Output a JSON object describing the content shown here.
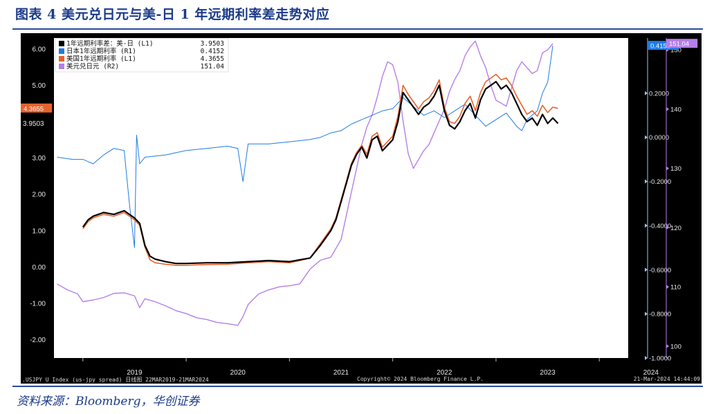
{
  "title": "图表 4   美元兑日元与美-日 1 年远期利率差走势对应",
  "source": "资料来源：Bloomberg，华创证券",
  "footer": {
    "left": ".USJPY U Index (us-jpy spread) 日线图 22MAR2019-21MAR2024",
    "center": "Copyright© 2024 Bloomberg Finance L.P.",
    "right": "21-Mar-2024 14:44:09"
  },
  "colors": {
    "spread": "#000000",
    "japan": "#1e7be6",
    "us": "#e8622c",
    "usdjpy": "#b57ee8",
    "frame": "#000000",
    "title": "#1a3a8a"
  },
  "chart_data": {
    "type": "line",
    "x_ticks": [
      "2019",
      "2020",
      "2021",
      "2022",
      "2023",
      "2024"
    ],
    "axes": {
      "left": {
        "ticks": [
          "6.00",
          "5.00",
          "3.00",
          "2.00",
          "1.00",
          "0.00",
          "-1.00",
          "-2.00"
        ],
        "ylim": [
          -2.5,
          6.3
        ]
      },
      "right1": {
        "ticks": [
          "0.2000",
          "0.0000",
          "-0.2000",
          "-0.4000",
          "-0.6000",
          "-0.8000",
          "-1.0000"
        ],
        "ylim": [
          -1.0,
          0.45
        ]
      },
      "right2": {
        "ticks": [
          "150",
          "140",
          "130",
          "120",
          "110",
          "100"
        ],
        "ylim": [
          98,
          152
        ]
      }
    },
    "last_value_tags": {
      "us_1y": "4.3655",
      "spread": "3.9503",
      "japan_1y": "0.4152",
      "usdjpy": "151.04"
    },
    "legend": [
      {
        "label": "1年远期利率差：美-日 (L1)",
        "value": "3.9503",
        "color": "#000000"
      },
      {
        "label": "日本1年远期利率 (R1)",
        "value": "0.4152",
        "color": "#1e7be6"
      },
      {
        "label": "美国1年远期利率 (L1)",
        "value": "4.3655",
        "color": "#e8622c"
      },
      {
        "label": "美元兑日元 (R2)",
        "value": "151.04",
        "color": "#b57ee8"
      }
    ],
    "series": [
      {
        "name": "1年远期利率差：美-日 (L1)",
        "axis": "left",
        "points": [
          [
            2019.0,
            1.1
          ],
          [
            2019.05,
            1.3
          ],
          [
            2019.1,
            1.4
          ],
          [
            2019.15,
            1.45
          ],
          [
            2019.2,
            1.5
          ],
          [
            2019.3,
            1.45
          ],
          [
            2019.4,
            1.55
          ],
          [
            2019.5,
            1.35
          ],
          [
            2019.55,
            1.2
          ],
          [
            2019.6,
            0.6
          ],
          [
            2019.65,
            0.3
          ],
          [
            2019.7,
            0.22
          ],
          [
            2019.8,
            0.15
          ],
          [
            2019.9,
            0.1
          ],
          [
            2020.0,
            0.1
          ],
          [
            2020.2,
            0.12
          ],
          [
            2020.4,
            0.12
          ],
          [
            2020.6,
            0.15
          ],
          [
            2020.8,
            0.18
          ],
          [
            2021.0,
            0.15
          ],
          [
            2021.1,
            0.2
          ],
          [
            2021.2,
            0.25
          ],
          [
            2021.3,
            0.6
          ],
          [
            2021.4,
            1.0
          ],
          [
            2021.45,
            1.3
          ],
          [
            2021.5,
            1.8
          ],
          [
            2021.55,
            2.3
          ],
          [
            2021.6,
            2.8
          ],
          [
            2021.65,
            3.1
          ],
          [
            2021.7,
            3.3
          ],
          [
            2021.75,
            3.0
          ],
          [
            2021.8,
            3.5
          ],
          [
            2021.85,
            3.6
          ],
          [
            2021.9,
            3.2
          ],
          [
            2022.0,
            3.5
          ],
          [
            2022.05,
            4.0
          ],
          [
            2022.1,
            4.8
          ],
          [
            2022.15,
            4.6
          ],
          [
            2022.2,
            4.4
          ],
          [
            2022.25,
            4.2
          ],
          [
            2022.3,
            4.4
          ],
          [
            2022.35,
            4.5
          ],
          [
            2022.4,
            4.7
          ],
          [
            2022.45,
            5.0
          ],
          [
            2022.5,
            4.3
          ],
          [
            2022.55,
            3.9
          ],
          [
            2022.6,
            3.8
          ],
          [
            2022.65,
            4.0
          ],
          [
            2022.7,
            4.3
          ],
          [
            2022.75,
            4.5
          ],
          [
            2022.8,
            4.1
          ],
          [
            2022.85,
            4.6
          ],
          [
            2022.9,
            4.9
          ],
          [
            2022.95,
            5.0
          ],
          [
            2023.0,
            5.1
          ],
          [
            2023.05,
            4.9
          ],
          [
            2023.1,
            5.0
          ],
          [
            2023.15,
            4.8
          ],
          [
            2023.2,
            4.5
          ],
          [
            2023.25,
            4.2
          ],
          [
            2023.3,
            4.0
          ],
          [
            2023.35,
            4.1
          ],
          [
            2023.4,
            3.9
          ],
          [
            2023.45,
            4.2
          ],
          [
            2023.5,
            3.95
          ],
          [
            2023.55,
            4.1
          ],
          [
            2023.6,
            3.95
          ]
        ]
      },
      {
        "name": "日本1年远期利率 (R1)",
        "axis": "right1",
        "points": [
          [
            2018.75,
            -0.09
          ],
          [
            2018.9,
            -0.1
          ],
          [
            2019.0,
            -0.1
          ],
          [
            2019.1,
            -0.12
          ],
          [
            2019.2,
            -0.08
          ],
          [
            2019.3,
            -0.05
          ],
          [
            2019.4,
            -0.06
          ],
          [
            2019.45,
            -0.3
          ],
          [
            2019.5,
            -0.5
          ],
          [
            2019.52,
            0.01
          ],
          [
            2019.55,
            -0.12
          ],
          [
            2019.6,
            -0.09
          ],
          [
            2019.8,
            -0.08
          ],
          [
            2020.0,
            -0.06
          ],
          [
            2020.2,
            -0.05
          ],
          [
            2020.4,
            -0.04
          ],
          [
            2020.5,
            -0.05
          ],
          [
            2020.55,
            -0.2
          ],
          [
            2020.6,
            -0.03
          ],
          [
            2020.8,
            -0.03
          ],
          [
            2021.0,
            -0.02
          ],
          [
            2021.2,
            -0.01
          ],
          [
            2021.3,
            0.0
          ],
          [
            2021.4,
            0.02
          ],
          [
            2021.5,
            0.03
          ],
          [
            2021.6,
            0.06
          ],
          [
            2021.7,
            0.08
          ],
          [
            2021.8,
            0.1
          ],
          [
            2021.9,
            0.12
          ],
          [
            2022.0,
            0.13
          ],
          [
            2022.1,
            0.18
          ],
          [
            2022.2,
            0.14
          ],
          [
            2022.3,
            0.1
          ],
          [
            2022.4,
            0.12
          ],
          [
            2022.5,
            0.09
          ],
          [
            2022.6,
            0.12
          ],
          [
            2022.7,
            0.15
          ],
          [
            2022.8,
            0.1
          ],
          [
            2022.9,
            0.05
          ],
          [
            2023.0,
            0.08
          ],
          [
            2023.1,
            0.11
          ],
          [
            2023.2,
            0.05
          ],
          [
            2023.25,
            0.03
          ],
          [
            2023.3,
            0.08
          ],
          [
            2023.4,
            0.12
          ],
          [
            2023.45,
            0.2
          ],
          [
            2023.5,
            0.25
          ],
          [
            2023.55,
            0.4152
          ]
        ]
      },
      {
        "name": "美国1年远期利率 (L1)",
        "axis": "left",
        "points": [
          [
            2019.0,
            1.05
          ],
          [
            2019.05,
            1.25
          ],
          [
            2019.1,
            1.35
          ],
          [
            2019.15,
            1.4
          ],
          [
            2019.2,
            1.45
          ],
          [
            2019.3,
            1.4
          ],
          [
            2019.4,
            1.5
          ],
          [
            2019.5,
            1.3
          ],
          [
            2019.55,
            1.15
          ],
          [
            2019.6,
            0.55
          ],
          [
            2019.65,
            0.2
          ],
          [
            2019.7,
            0.12
          ],
          [
            2019.8,
            0.08
          ],
          [
            2019.9,
            0.05
          ],
          [
            2020.0,
            0.05
          ],
          [
            2020.2,
            0.07
          ],
          [
            2020.4,
            0.08
          ],
          [
            2020.6,
            0.12
          ],
          [
            2020.8,
            0.15
          ],
          [
            2021.0,
            0.12
          ],
          [
            2021.1,
            0.18
          ],
          [
            2021.2,
            0.25
          ],
          [
            2021.3,
            0.65
          ],
          [
            2021.4,
            1.05
          ],
          [
            2021.45,
            1.35
          ],
          [
            2021.5,
            1.85
          ],
          [
            2021.55,
            2.35
          ],
          [
            2021.6,
            2.85
          ],
          [
            2021.65,
            3.15
          ],
          [
            2021.7,
            3.35
          ],
          [
            2021.75,
            3.1
          ],
          [
            2021.8,
            3.6
          ],
          [
            2021.85,
            3.7
          ],
          [
            2021.9,
            3.3
          ],
          [
            2022.0,
            3.6
          ],
          [
            2022.05,
            4.15
          ],
          [
            2022.1,
            5.0
          ],
          [
            2022.15,
            4.75
          ],
          [
            2022.2,
            4.55
          ],
          [
            2022.25,
            4.35
          ],
          [
            2022.3,
            4.55
          ],
          [
            2022.35,
            4.65
          ],
          [
            2022.4,
            4.85
          ],
          [
            2022.45,
            5.15
          ],
          [
            2022.5,
            4.4
          ],
          [
            2022.55,
            4.0
          ],
          [
            2022.6,
            3.95
          ],
          [
            2022.65,
            4.15
          ],
          [
            2022.7,
            4.5
          ],
          [
            2022.75,
            4.7
          ],
          [
            2022.8,
            4.3
          ],
          [
            2022.85,
            4.8
          ],
          [
            2022.9,
            5.1
          ],
          [
            2022.95,
            5.2
          ],
          [
            2023.0,
            5.3
          ],
          [
            2023.05,
            5.15
          ],
          [
            2023.1,
            5.2
          ],
          [
            2023.15,
            5.0
          ],
          [
            2023.2,
            4.7
          ],
          [
            2023.25,
            4.45
          ],
          [
            2023.3,
            4.2
          ],
          [
            2023.35,
            4.3
          ],
          [
            2023.4,
            4.15
          ],
          [
            2023.45,
            4.45
          ],
          [
            2023.5,
            4.25
          ],
          [
            2023.55,
            4.4
          ],
          [
            2023.6,
            4.3655
          ]
        ]
      },
      {
        "name": "美元兑日元 (R2)",
        "axis": "right2",
        "points": [
          [
            2018.75,
            110.5
          ],
          [
            2018.85,
            109.5
          ],
          [
            2018.95,
            108.8
          ],
          [
            2019.0,
            107.5
          ],
          [
            2019.1,
            107.8
          ],
          [
            2019.2,
            108.2
          ],
          [
            2019.3,
            108.9
          ],
          [
            2019.4,
            109.0
          ],
          [
            2019.5,
            108.5
          ],
          [
            2019.55,
            106.5
          ],
          [
            2019.6,
            108.0
          ],
          [
            2019.7,
            107.5
          ],
          [
            2019.8,
            106.8
          ],
          [
            2019.9,
            106.0
          ],
          [
            2020.0,
            105.5
          ],
          [
            2020.1,
            104.8
          ],
          [
            2020.2,
            104.5
          ],
          [
            2020.3,
            104.0
          ],
          [
            2020.4,
            103.8
          ],
          [
            2020.5,
            103.5
          ],
          [
            2020.55,
            105.0
          ],
          [
            2020.6,
            107.0
          ],
          [
            2020.7,
            108.8
          ],
          [
            2020.8,
            109.5
          ],
          [
            2020.9,
            110.0
          ],
          [
            2021.0,
            110.2
          ],
          [
            2021.1,
            110.5
          ],
          [
            2021.2,
            113.0
          ],
          [
            2021.3,
            114.5
          ],
          [
            2021.4,
            115.0
          ],
          [
            2021.5,
            118.0
          ],
          [
            2021.55,
            122.0
          ],
          [
            2021.6,
            126.0
          ],
          [
            2021.65,
            130.0
          ],
          [
            2021.7,
            134.0
          ],
          [
            2021.75,
            137.0
          ],
          [
            2021.8,
            139.0
          ],
          [
            2021.85,
            142.0
          ],
          [
            2021.9,
            145.5
          ],
          [
            2021.95,
            148.0
          ],
          [
            2022.0,
            147.5
          ],
          [
            2022.05,
            144.5
          ],
          [
            2022.1,
            138.0
          ],
          [
            2022.15,
            132.5
          ],
          [
            2022.2,
            130.0
          ],
          [
            2022.25,
            131.5
          ],
          [
            2022.3,
            133.0
          ],
          [
            2022.35,
            134.0
          ],
          [
            2022.4,
            136.0
          ],
          [
            2022.45,
            138.0
          ],
          [
            2022.5,
            140.0
          ],
          [
            2022.55,
            143.0
          ],
          [
            2022.6,
            145.0
          ],
          [
            2022.65,
            146.5
          ],
          [
            2022.7,
            149.0
          ],
          [
            2022.75,
            150.5
          ],
          [
            2022.8,
            151.5
          ],
          [
            2022.85,
            149.0
          ],
          [
            2022.9,
            147.0
          ],
          [
            2022.95,
            144.0
          ],
          [
            2023.0,
            141.5
          ],
          [
            2023.05,
            141.0
          ],
          [
            2023.1,
            140.5
          ],
          [
            2023.15,
            143.5
          ],
          [
            2023.2,
            146.5
          ],
          [
            2023.25,
            148.0
          ],
          [
            2023.3,
            147.0
          ],
          [
            2023.35,
            146.0
          ],
          [
            2023.4,
            146.5
          ],
          [
            2023.45,
            149.5
          ],
          [
            2023.5,
            150.0
          ],
          [
            2023.55,
            151.04
          ]
        ]
      }
    ]
  }
}
